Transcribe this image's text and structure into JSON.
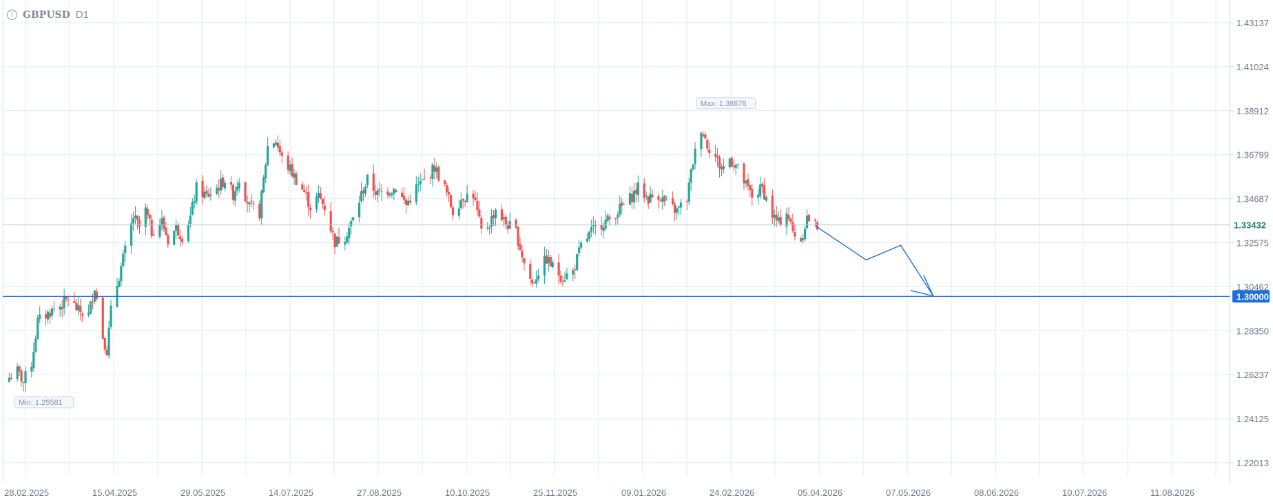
{
  "header": {
    "symbol": "GBPUSD",
    "timeframe": "D1",
    "info_icon": "info-icon"
  },
  "colors": {
    "bull": "#26a69a",
    "bear": "#ef5350",
    "line": "#1e6fd9",
    "grid": "#e3eaf5",
    "axis_text": "#6b7689"
  },
  "chart_data": {
    "type": "candlestick",
    "title": "GBPUSD",
    "timeframe": "D1",
    "grid": true,
    "ylim": [
      1.215,
      1.437
    ],
    "y_ticks": [
      1.43137,
      1.41024,
      1.38912,
      1.36799,
      1.34687,
      1.32575,
      1.30462,
      1.2835,
      1.26237,
      1.24125,
      1.22013
    ],
    "y_tick_labels": [
      "1.43137",
      "1.41024",
      "1.38912",
      "1.36799",
      "1.34687",
      "1.32575",
      "1.30462",
      "1.28350",
      "1.26237",
      "1.24125",
      "1.22013"
    ],
    "x_tick_labels": [
      "28.02.2025",
      "15.04.2025",
      "29.05.2025",
      "14.07.2025",
      "27.08.2025",
      "10.10.2025",
      "25.11.2025",
      "09.01.2026",
      "24.02.2026",
      "05.04.2026",
      "07.05.2026",
      "08.06.2026",
      "10.07.2026",
      "11.08.2026"
    ],
    "series": [
      {
        "kind": "close_path",
        "points": [
          [
            "2025-02-20",
            1.261
          ],
          [
            "2025-02-24",
            1.264
          ],
          [
            "2025-02-27",
            1.259
          ],
          [
            "2025-03-03",
            1.268
          ],
          [
            "2025-03-06",
            1.288
          ],
          [
            "2025-03-10",
            1.291
          ],
          [
            "2025-03-14",
            1.294
          ],
          [
            "2025-03-18",
            1.296
          ],
          [
            "2025-03-21",
            1.299
          ],
          [
            "2025-03-26",
            1.293
          ],
          [
            "2025-03-31",
            1.291
          ],
          [
            "2025-04-03",
            1.305
          ],
          [
            "2025-04-07",
            1.281
          ],
          [
            "2025-04-09",
            1.274
          ],
          [
            "2025-04-11",
            1.293
          ],
          [
            "2025-04-15",
            1.31
          ],
          [
            "2025-04-18",
            1.322
          ],
          [
            "2025-04-22",
            1.338
          ],
          [
            "2025-04-25",
            1.333
          ],
          [
            "2025-04-28",
            1.341
          ],
          [
            "2025-05-01",
            1.331
          ],
          [
            "2025-05-06",
            1.336
          ],
          [
            "2025-05-09",
            1.327
          ],
          [
            "2025-05-13",
            1.333
          ],
          [
            "2025-05-16",
            1.329
          ],
          [
            "2025-05-20",
            1.338
          ],
          [
            "2025-05-23",
            1.352
          ],
          [
            "2025-05-28",
            1.348
          ],
          [
            "2025-06-02",
            1.352
          ],
          [
            "2025-06-06",
            1.356
          ],
          [
            "2025-06-10",
            1.349
          ],
          [
            "2025-06-13",
            1.357
          ],
          [
            "2025-06-18",
            1.343
          ],
          [
            "2025-06-23",
            1.34
          ],
          [
            "2025-06-27",
            1.372
          ],
          [
            "2025-07-01",
            1.375
          ],
          [
            "2025-07-04",
            1.366
          ],
          [
            "2025-07-08",
            1.361
          ],
          [
            "2025-07-11",
            1.356
          ],
          [
            "2025-07-15",
            1.35
          ],
          [
            "2025-07-18",
            1.343
          ],
          [
            "2025-07-22",
            1.348
          ],
          [
            "2025-07-25",
            1.343
          ],
          [
            "2025-07-30",
            1.326
          ],
          [
            "2025-08-04",
            1.329
          ],
          [
            "2025-08-08",
            1.337
          ],
          [
            "2025-08-12",
            1.349
          ],
          [
            "2025-08-15",
            1.356
          ],
          [
            "2025-08-20",
            1.349
          ],
          [
            "2025-08-25",
            1.351
          ],
          [
            "2025-08-29",
            1.352
          ],
          [
            "2025-09-03",
            1.344
          ],
          [
            "2025-09-08",
            1.352
          ],
          [
            "2025-09-12",
            1.356
          ],
          [
            "2025-09-17",
            1.362
          ],
          [
            "2025-09-22",
            1.352
          ],
          [
            "2025-09-26",
            1.341
          ],
          [
            "2025-10-01",
            1.348
          ],
          [
            "2025-10-06",
            1.349
          ],
          [
            "2025-10-10",
            1.331
          ],
          [
            "2025-10-14",
            1.335
          ],
          [
            "2025-10-17",
            1.342
          ],
          [
            "2025-10-22",
            1.335
          ],
          [
            "2025-10-27",
            1.331
          ],
          [
            "2025-10-31",
            1.316
          ],
          [
            "2025-11-04",
            1.306
          ],
          [
            "2025-11-07",
            1.312
          ],
          [
            "2025-11-11",
            1.318
          ],
          [
            "2025-11-14",
            1.314
          ],
          [
            "2025-11-19",
            1.309
          ],
          [
            "2025-11-24",
            1.312
          ],
          [
            "2025-11-28",
            1.324
          ],
          [
            "2025-12-03",
            1.331
          ],
          [
            "2025-12-08",
            1.335
          ],
          [
            "2025-12-12",
            1.337
          ],
          [
            "2025-12-17",
            1.342
          ],
          [
            "2025-12-22",
            1.347
          ],
          [
            "2025-12-26",
            1.352
          ],
          [
            "2025-12-31",
            1.347
          ],
          [
            "2026-01-05",
            1.349
          ],
          [
            "2026-01-09",
            1.344
          ],
          [
            "2026-01-14",
            1.341
          ],
          [
            "2026-01-19",
            1.347
          ],
          [
            "2026-01-22",
            1.365
          ],
          [
            "2026-01-26",
            1.381
          ],
          [
            "2026-01-29",
            1.373
          ],
          [
            "2026-02-02",
            1.367
          ],
          [
            "2026-02-05",
            1.361
          ],
          [
            "2026-02-09",
            1.366
          ],
          [
            "2026-02-12",
            1.363
          ],
          [
            "2026-02-17",
            1.353
          ],
          [
            "2026-02-20",
            1.348
          ],
          [
            "2026-02-25",
            1.352
          ],
          [
            "2026-03-02",
            1.339
          ],
          [
            "2026-03-05",
            1.335
          ],
          [
            "2026-03-09",
            1.341
          ],
          [
            "2026-03-12",
            1.331
          ],
          [
            "2026-03-16",
            1.327
          ],
          [
            "2026-03-19",
            1.338
          ],
          [
            "2026-03-23",
            1.334
          ]
        ]
      }
    ],
    "min_label": "Min: 1.25581",
    "min_point": [
      "2025-02-26",
      1.25581
    ],
    "max_label": "Max: 1.38678",
    "max_point": [
      "2026-01-27",
      1.38678
    ],
    "current_price": 1.33432,
    "current_price_label": "1.33432",
    "horizontal_level": 1.3,
    "horizontal_level_label": "1.30000",
    "forecast_path": [
      [
        "2026-03-23",
        1.3339
      ],
      [
        "2026-04-17",
        1.3175
      ],
      [
        "2026-05-04",
        1.3245
      ],
      [
        "2026-05-20",
        1.3002
      ]
    ]
  }
}
